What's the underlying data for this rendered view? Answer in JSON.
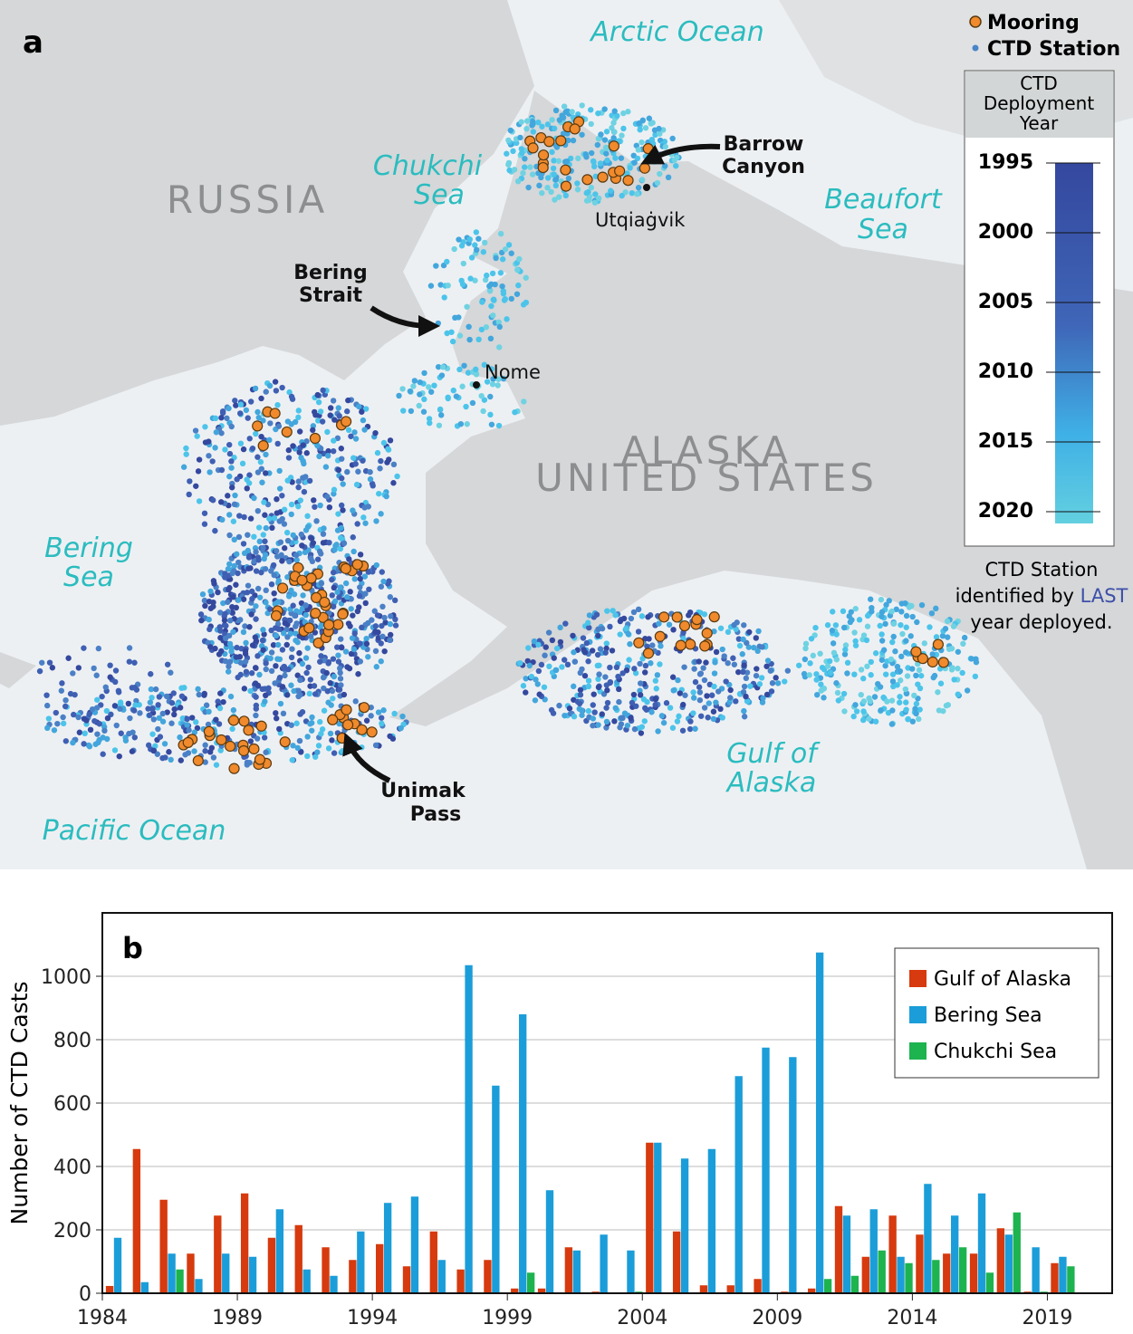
{
  "map": {
    "panel_label": "a",
    "labels": {
      "arctic_ocean": "Arctic Ocean",
      "chukchi_sea": [
        "Chukchi",
        "Sea"
      ],
      "beaufort_sea": [
        "Beaufort",
        "Sea"
      ],
      "bering_sea": [
        "Bering",
        "Sea"
      ],
      "gulf_of_alaska": [
        "Gulf of",
        "Alaska"
      ],
      "pacific_ocean": "Pacific Ocean",
      "russia": "RUSSIA",
      "alaska": "ALASKA",
      "united_states": "UNITED STATES",
      "barrow_canyon": [
        "Barrow",
        "Canyon"
      ],
      "bering_strait": [
        "Bering",
        "Strait"
      ],
      "unimak_pass": [
        "Unimak",
        "Pass"
      ],
      "utqiagvik": "Utqiaġvik",
      "nome": "Nome"
    },
    "legend": [
      "Mooring",
      "CTD Station"
    ],
    "colorbar": {
      "title": [
        "CTD",
        "Deployment",
        "Year"
      ],
      "lim": [
        1995,
        2020
      ],
      "ticks": [
        1995,
        2000,
        2005,
        2010,
        2015,
        2020
      ]
    },
    "note": {
      "line1": "CTD Station",
      "line2": "identified by",
      "emphasis": "LAST",
      "line3": "year deployed."
    }
  },
  "chart_data": {
    "type": "bar",
    "panel_label": "b",
    "y_label": "Number of CTD Casts",
    "x": [
      1984,
      1985,
      1986,
      1987,
      1988,
      1989,
      1990,
      1991,
      1992,
      1993,
      1994,
      1995,
      1996,
      1997,
      1998,
      1999,
      2000,
      2001,
      2002,
      2003,
      2004,
      2005,
      2006,
      2007,
      2008,
      2009,
      2010,
      2011,
      2012,
      2013,
      2014,
      2015,
      2016,
      2017,
      2018,
      2019
    ],
    "series": [
      {
        "name": "Gulf of Alaska",
        "color": "#d63a0e",
        "values": [
          23,
          455,
          295,
          125,
          245,
          315,
          175,
          215,
          145,
          105,
          155,
          85,
          195,
          75,
          105,
          15,
          15,
          145,
          5,
          0,
          475,
          195,
          25,
          25,
          45,
          5,
          15,
          275,
          115,
          245,
          185,
          125,
          125,
          205,
          5,
          95
        ]
      },
      {
        "name": "Bering Sea",
        "color": "#1b9dd9",
        "values": [
          175,
          35,
          125,
          45,
          125,
          115,
          265,
          75,
          55,
          195,
          285,
          305,
          105,
          1035,
          655,
          880,
          325,
          135,
          185,
          135,
          475,
          425,
          455,
          685,
          775,
          745,
          1075,
          245,
          265,
          115,
          345,
          245,
          315,
          185,
          145,
          115
        ]
      },
      {
        "name": "Chukchi Sea",
        "color": "#1db34f",
        "values": [
          0,
          0,
          75,
          0,
          0,
          0,
          0,
          0,
          0,
          0,
          0,
          0,
          0,
          0,
          0,
          65,
          0,
          0,
          0,
          5,
          0,
          0,
          0,
          0,
          0,
          0,
          45,
          55,
          135,
          95,
          105,
          145,
          65,
          255,
          5,
          85
        ]
      }
    ],
    "xlim": [
      1984,
      2021.4
    ],
    "xticks": [
      1984,
      1989,
      1994,
      1999,
      2004,
      2009,
      2014,
      2019
    ],
    "ylim": [
      0,
      1200
    ],
    "yticks": [
      0,
      200,
      400,
      600,
      800,
      1000
    ],
    "grid": true,
    "legend": "upper right"
  }
}
